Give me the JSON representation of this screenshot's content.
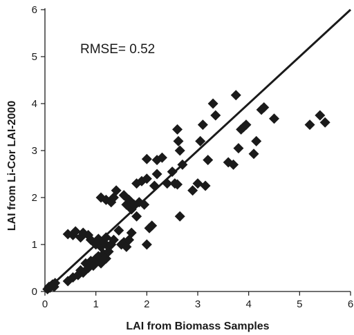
{
  "chart_data": {
    "type": "scatter",
    "xlabel": "LAI from Biomass Samples",
    "ylabel": "LAI from Li-Cor LAI-2000",
    "xlim": [
      0,
      6
    ],
    "ylim": [
      0,
      6
    ],
    "xticks": [
      0,
      1,
      2,
      3,
      4,
      5,
      6
    ],
    "yticks": [
      0,
      1,
      2,
      3,
      4,
      5,
      6
    ],
    "grid": false,
    "annotation": "RMSE= 0.52",
    "reference_line": {
      "type": "1:1",
      "from": [
        0,
        0
      ],
      "to": [
        6,
        6
      ],
      "color": "#1a1a1a"
    },
    "marker": {
      "shape": "diamond",
      "color": "#1a1a1a"
    },
    "points": [
      [
        0.05,
        0.05
      ],
      [
        0.08,
        0.1
      ],
      [
        0.1,
        0.08
      ],
      [
        0.12,
        0.12
      ],
      [
        0.15,
        0.15
      ],
      [
        0.18,
        0.1
      ],
      [
        0.2,
        0.18
      ],
      [
        0.45,
        0.22
      ],
      [
        0.55,
        0.3
      ],
      [
        0.65,
        0.35
      ],
      [
        0.7,
        0.45
      ],
      [
        0.75,
        0.4
      ],
      [
        0.8,
        0.6
      ],
      [
        0.85,
        0.5
      ],
      [
        0.9,
        0.65
      ],
      [
        0.95,
        0.55
      ],
      [
        1.0,
        0.7
      ],
      [
        1.05,
        0.75
      ],
      [
        1.1,
        0.6
      ],
      [
        1.15,
        0.8
      ],
      [
        1.2,
        0.7
      ],
      [
        1.25,
        0.85
      ],
      [
        0.45,
        1.22
      ],
      [
        0.55,
        1.2
      ],
      [
        0.6,
        1.28
      ],
      [
        0.7,
        1.15
      ],
      [
        0.75,
        1.25
      ],
      [
        0.85,
        1.2
      ],
      [
        0.9,
        1.1
      ],
      [
        1.0,
        1.0
      ],
      [
        1.05,
        1.12
      ],
      [
        1.1,
        0.95
      ],
      [
        1.15,
        1.05
      ],
      [
        1.2,
        1.15
      ],
      [
        1.25,
        0.95
      ],
      [
        1.3,
        1.0
      ],
      [
        1.35,
        1.1
      ],
      [
        1.1,
        2.0
      ],
      [
        1.2,
        1.95
      ],
      [
        1.3,
        1.9
      ],
      [
        1.35,
        2.0
      ],
      [
        1.4,
        2.15
      ],
      [
        1.45,
        1.3
      ],
      [
        1.5,
        1.0
      ],
      [
        1.55,
        1.05
      ],
      [
        1.6,
        0.95
      ],
      [
        1.65,
        1.1
      ],
      [
        1.55,
        2.05
      ],
      [
        1.6,
        1.85
      ],
      [
        1.65,
        1.95
      ],
      [
        1.7,
        1.25
      ],
      [
        1.7,
        1.75
      ],
      [
        1.75,
        1.85
      ],
      [
        1.8,
        1.6
      ],
      [
        1.8,
        2.3
      ],
      [
        1.85,
        1.9
      ],
      [
        1.9,
        2.35
      ],
      [
        1.95,
        1.85
      ],
      [
        2.0,
        1.0
      ],
      [
        2.0,
        2.4
      ],
      [
        2.05,
        1.35
      ],
      [
        2.1,
        1.4
      ],
      [
        2.0,
        2.82
      ],
      [
        2.15,
        2.25
      ],
      [
        2.2,
        2.5
      ],
      [
        2.2,
        2.8
      ],
      [
        2.3,
        2.85
      ],
      [
        2.4,
        2.3
      ],
      [
        2.5,
        2.55
      ],
      [
        2.55,
        2.3
      ],
      [
        2.6,
        2.28
      ],
      [
        2.6,
        3.45
      ],
      [
        2.62,
        3.2
      ],
      [
        2.65,
        3.0
      ],
      [
        2.65,
        1.6
      ],
      [
        2.7,
        2.7
      ],
      [
        2.9,
        2.15
      ],
      [
        3.0,
        2.3
      ],
      [
        3.05,
        3.2
      ],
      [
        3.1,
        3.55
      ],
      [
        3.15,
        2.25
      ],
      [
        3.2,
        2.8
      ],
      [
        3.3,
        4.0
      ],
      [
        3.35,
        3.75
      ],
      [
        3.6,
        2.75
      ],
      [
        3.7,
        2.7
      ],
      [
        3.75,
        4.18
      ],
      [
        3.8,
        3.05
      ],
      [
        3.85,
        3.45
      ],
      [
        3.9,
        3.5
      ],
      [
        3.95,
        3.55
      ],
      [
        4.1,
        2.93
      ],
      [
        4.15,
        3.2
      ],
      [
        4.25,
        3.87
      ],
      [
        4.3,
        3.92
      ],
      [
        4.5,
        3.68
      ],
      [
        5.2,
        3.55
      ],
      [
        5.4,
        3.75
      ],
      [
        5.5,
        3.6
      ]
    ]
  }
}
